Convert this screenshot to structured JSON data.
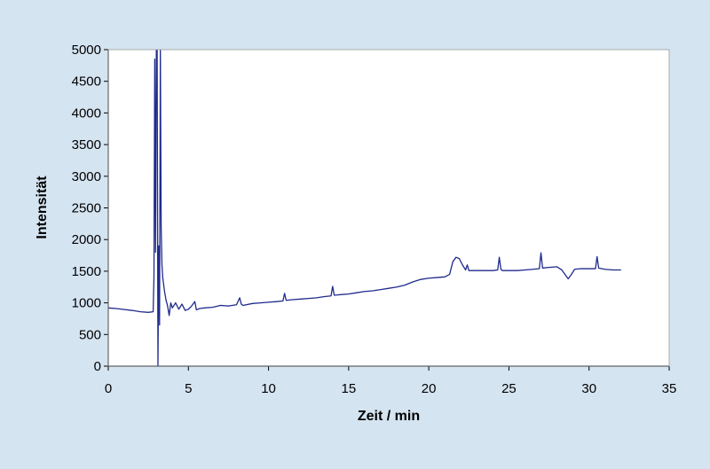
{
  "colors": {
    "background": "#d5e4f1",
    "plot_area": "#ffffff",
    "series_line": "#1f2a8c",
    "axes": "#000000"
  },
  "chart_data": {
    "type": "line",
    "title": "",
    "xlabel": "Zeit / min",
    "ylabel": "Intensität",
    "xlim": [
      0,
      35
    ],
    "ylim": [
      0,
      5000
    ],
    "x_ticks": [
      0,
      5,
      10,
      15,
      20,
      25,
      30,
      35
    ],
    "y_ticks": [
      0,
      500,
      1000,
      1500,
      2000,
      2500,
      3000,
      3500,
      4000,
      4500,
      5000
    ],
    "grid": false,
    "legend": "none",
    "series": [
      {
        "color": "#1f2a8c",
        "x": [
          0,
          0.5,
          1.0,
          1.5,
          2.0,
          2.5,
          2.8,
          2.85,
          2.9,
          2.95,
          3.0,
          3.05,
          3.1,
          3.15,
          3.2,
          3.25,
          3.3,
          3.35,
          3.4,
          3.5,
          3.6,
          3.7,
          3.8,
          3.9,
          4.0,
          4.2,
          4.4,
          4.6,
          4.8,
          5.0,
          5.2,
          5.4,
          5.5,
          5.7,
          6.0,
          6.5,
          7.0,
          7.5,
          8.0,
          8.2,
          8.3,
          8.4,
          9.0,
          9.5,
          10.0,
          10.5,
          10.9,
          11.0,
          11.1,
          11.5,
          12.0,
          12.5,
          13.0,
          13.5,
          13.9,
          14.0,
          14.1,
          14.5,
          15.0,
          15.5,
          16.0,
          16.5,
          17.0,
          17.5,
          18.0,
          18.5,
          19.0,
          19.5,
          20.0,
          20.5,
          21.0,
          21.3,
          21.5,
          21.7,
          21.9,
          22.1,
          22.3,
          22.4,
          22.5,
          22.8,
          23.0,
          23.5,
          24.0,
          24.3,
          24.4,
          24.5,
          24.6,
          25.0,
          25.5,
          26.0,
          26.5,
          26.9,
          27.0,
          27.1,
          27.5,
          28.0,
          28.3,
          28.5,
          28.7,
          28.9,
          29.1,
          29.5,
          30.0,
          30.4,
          30.5,
          30.6,
          31.0,
          31.5,
          32.0
        ],
        "y": [
          920,
          910,
          895,
          880,
          860,
          850,
          860,
          1400,
          4850,
          1800,
          5000,
          5000,
          0,
          1900,
          650,
          5000,
          2200,
          1600,
          1400,
          1200,
          1050,
          950,
          800,
          1000,
          920,
          1000,
          900,
          980,
          880,
          900,
          950,
          1020,
          890,
          910,
          920,
          930,
          960,
          950,
          970,
          1080,
          980,
          960,
          990,
          1000,
          1010,
          1020,
          1030,
          1150,
          1040,
          1050,
          1060,
          1070,
          1080,
          1100,
          1110,
          1260,
          1120,
          1130,
          1140,
          1160,
          1180,
          1190,
          1210,
          1230,
          1250,
          1280,
          1330,
          1370,
          1390,
          1400,
          1410,
          1450,
          1650,
          1720,
          1700,
          1600,
          1520,
          1600,
          1510,
          1510,
          1510,
          1510,
          1510,
          1520,
          1720,
          1530,
          1510,
          1510,
          1510,
          1520,
          1530,
          1540,
          1790,
          1550,
          1560,
          1570,
          1520,
          1450,
          1380,
          1450,
          1530,
          1540,
          1540,
          1540,
          1730,
          1550,
          1530,
          1520,
          1520
        ]
      }
    ]
  }
}
